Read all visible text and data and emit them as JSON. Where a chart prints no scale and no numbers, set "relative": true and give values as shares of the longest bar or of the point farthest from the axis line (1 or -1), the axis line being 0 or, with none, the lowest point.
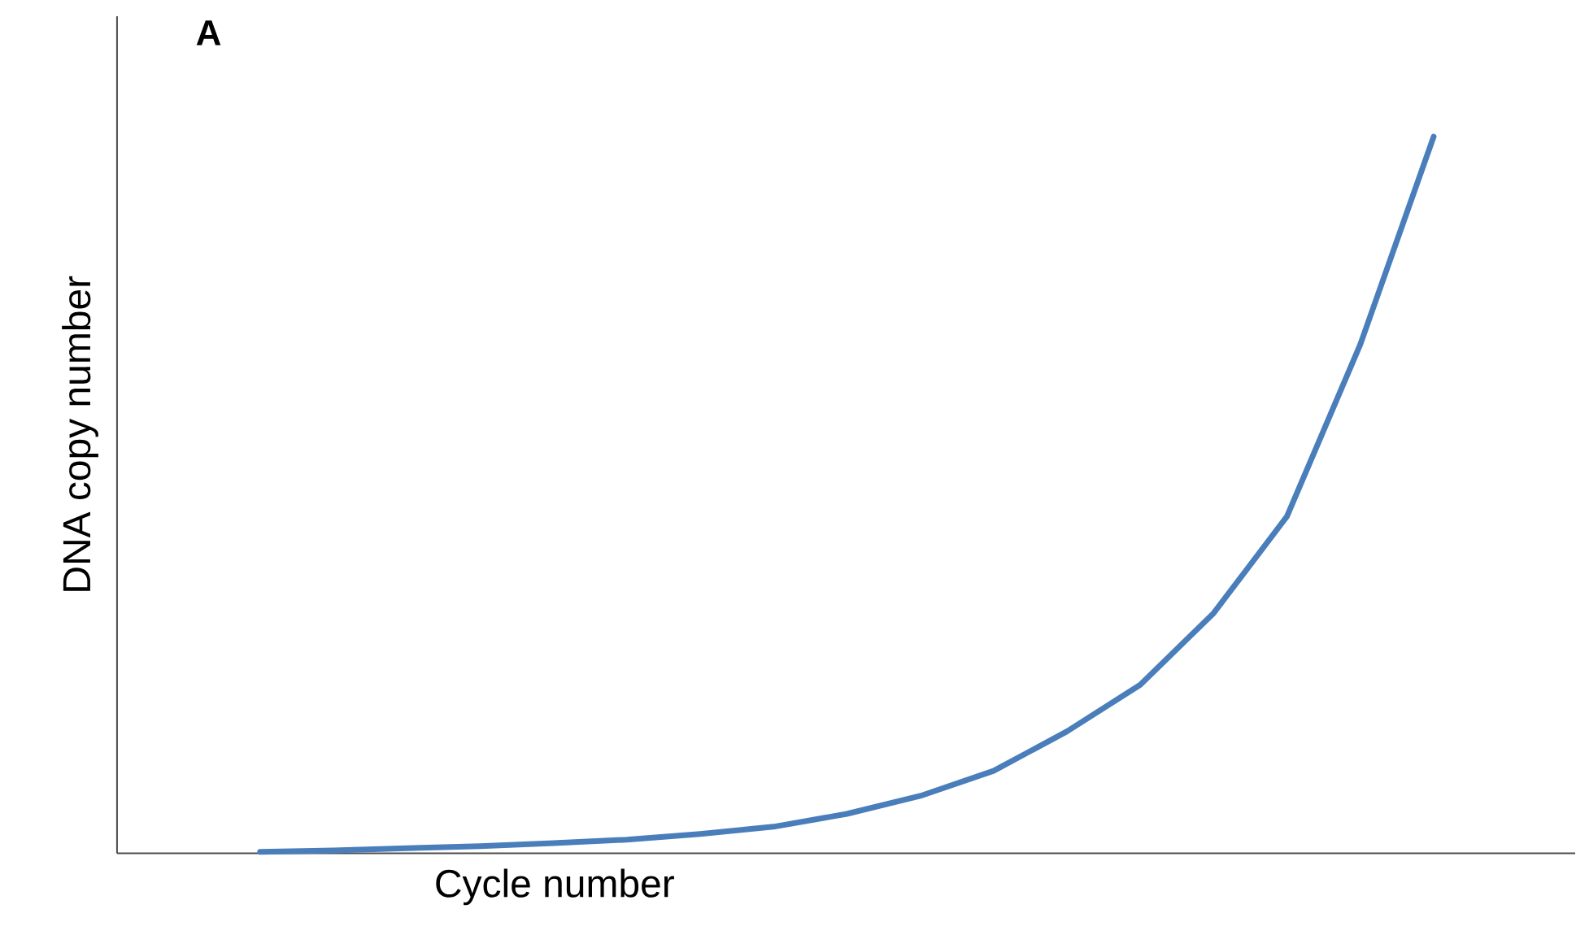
{
  "chart_data": {
    "type": "line",
    "relative": true,
    "title": "A",
    "xlabel": "Cycle number",
    "ylabel": "DNA copy number",
    "categories": [
      null,
      null,
      null,
      null,
      null,
      null,
      null,
      null,
      null,
      null,
      null,
      null,
      null,
      null,
      null,
      null,
      null
    ],
    "series": [
      {
        "color": "#4a7ebb",
        "values": [
          0.002,
          0.004,
          0.007,
          0.01,
          0.014,
          0.019,
          0.027,
          0.037,
          0.055,
          0.08,
          0.115,
          0.17,
          0.235,
          0.335,
          0.47,
          0.71,
          1.0
        ]
      }
    ],
    "marker": "none",
    "line_style": "solid"
  }
}
